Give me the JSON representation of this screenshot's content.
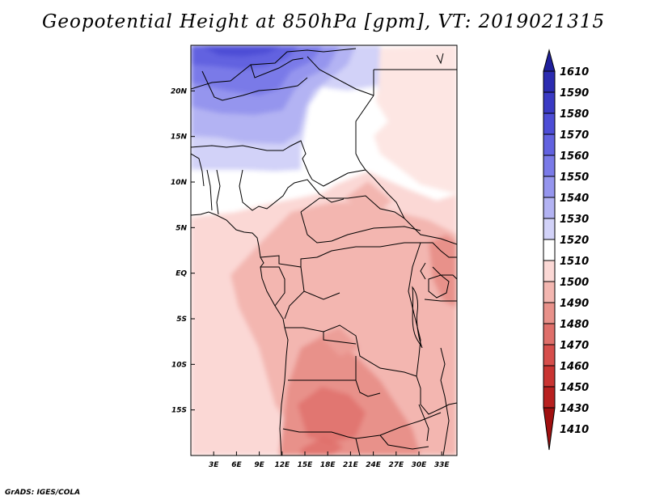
{
  "title": "Geopotential Height at 850hPa [gpm], VT: 2019021315",
  "credit": "GrADS: IGES/COLA",
  "map": {
    "lat_labels": [
      "20N",
      "15N",
      "10N",
      "5N",
      "EQ",
      "5S",
      "10S",
      "15S"
    ],
    "lat_values": [
      20,
      15,
      10,
      5,
      0,
      -5,
      -10,
      -15
    ],
    "lon_labels": [
      "3E",
      "6E",
      "9E",
      "12E",
      "15E",
      "18E",
      "21E",
      "24E",
      "27E",
      "30E",
      "33E"
    ],
    "lon_values": [
      3,
      6,
      9,
      12,
      15,
      18,
      21,
      24,
      27,
      30,
      33
    ],
    "lat_range": [
      -20,
      25
    ],
    "lon_range": [
      0,
      35
    ]
  },
  "colorbar": {
    "labels": [
      "1610",
      "1590",
      "1580",
      "1570",
      "1560",
      "1550",
      "1540",
      "1530",
      "1520",
      "1510",
      "1500",
      "1490",
      "1480",
      "1470",
      "1460",
      "1450",
      "1430",
      "1410"
    ],
    "colors": [
      "#1f1f9c",
      "#2b2bb0",
      "#3a3ac4",
      "#4d4dd6",
      "#6262e0",
      "#7a7ae8",
      "#9595ee",
      "#b3b3f3",
      "#d2d2f8",
      "#ffffff",
      "#fbd8d5",
      "#f3b6b0",
      "#e8918a",
      "#df6f6a",
      "#d64e4b",
      "#c93432",
      "#b8201f",
      "#a01010"
    ]
  }
}
